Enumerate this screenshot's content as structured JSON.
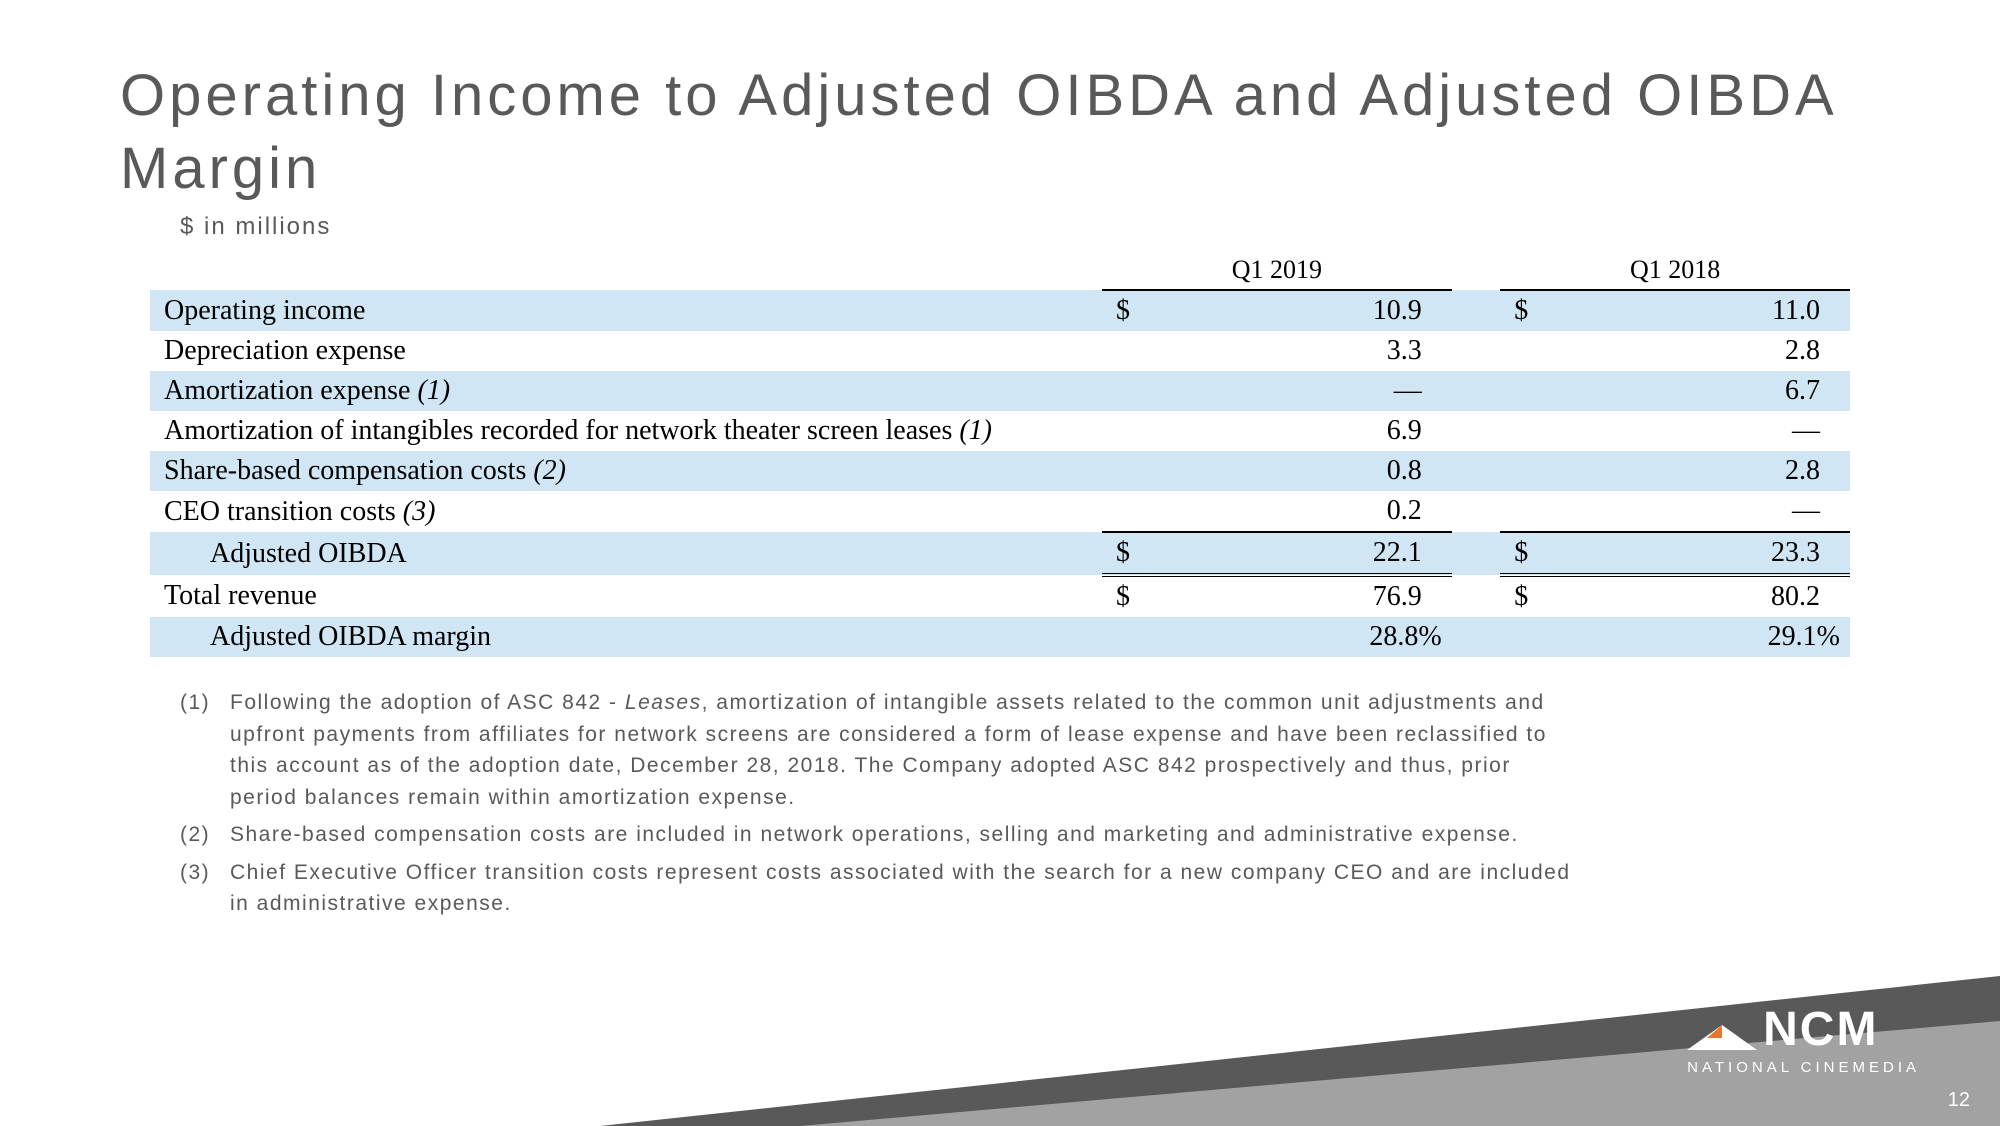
{
  "title": "Operating Income to Adjusted OIBDA and Adjusted OIBDA Margin",
  "subtitle": "$ in millions",
  "columns": [
    "Q1 2019",
    "Q1 2018"
  ],
  "rows": [
    {
      "label": "Operating income",
      "cur": "$",
      "v1": "10.9",
      "v2": "11.0",
      "shaded": true,
      "indent": false
    },
    {
      "label": "Depreciation expense",
      "cur": "",
      "v1": "3.3",
      "v2": "2.8",
      "shaded": false,
      "indent": false
    },
    {
      "label": "Amortization expense",
      "note": "(1)",
      "cur": "",
      "v1": "—",
      "v2": "6.7",
      "shaded": true,
      "indent": false
    },
    {
      "label": "Amortization of intangibles recorded for network theater screen leases",
      "note": "(1)",
      "cur": "",
      "v1": "6.9",
      "v2": "—",
      "shaded": false,
      "indent": false
    },
    {
      "label": "Share-based compensation costs",
      "note": "(2)",
      "cur": "",
      "v1": "0.8",
      "v2": "2.8",
      "shaded": true,
      "indent": false
    },
    {
      "label": "CEO transition costs",
      "note": "(3)",
      "cur": "",
      "v1": "0.2",
      "v2": "—",
      "shaded": false,
      "indent": false
    },
    {
      "label": "Adjusted OIBDA",
      "cur": "$",
      "v1": "22.1",
      "v2": "23.3",
      "shaded": true,
      "indent": true,
      "total": true
    },
    {
      "label": "Total revenue",
      "cur": "$",
      "v1": "76.9",
      "v2": "80.2",
      "shaded": false,
      "indent": false,
      "topline": true
    },
    {
      "label": "Adjusted OIBDA margin",
      "cur": "",
      "v1": "28.8%",
      "v2": "29.1%",
      "shaded": true,
      "indent": true,
      "pct": true
    }
  ],
  "footnotes": [
    {
      "n": "(1)",
      "t_pre": "Following the adoption of ASC 842 - ",
      "t_it": "Leases",
      "t_post": ", amortization of intangible assets related to the common unit adjustments and upfront payments from affiliates for network screens are considered a form of lease expense and have been reclassified to this account as of the adoption date, December 28, 2018.  The Company adopted ASC 842 prospectively and thus, prior period balances remain within amortization expense."
    },
    {
      "n": "(2)",
      "t_pre": "Share-based compensation costs are included in network operations, selling and marketing and administrative expense.",
      "t_it": "",
      "t_post": ""
    },
    {
      "n": "(3)",
      "t_pre": "Chief Executive Officer transition costs represent costs associated with the search for a new company CEO and are included in administrative expense.",
      "t_it": "",
      "t_post": ""
    }
  ],
  "logo": {
    "text": "NCM",
    "sub": "NATIONAL CINEMEDIA"
  },
  "colors": {
    "shade": "#d1e6f4",
    "title": "#595959",
    "triDark": "#595959",
    "triLight": "#a6a6a6",
    "orange": "#e8762c"
  },
  "pageNumber": "12"
}
